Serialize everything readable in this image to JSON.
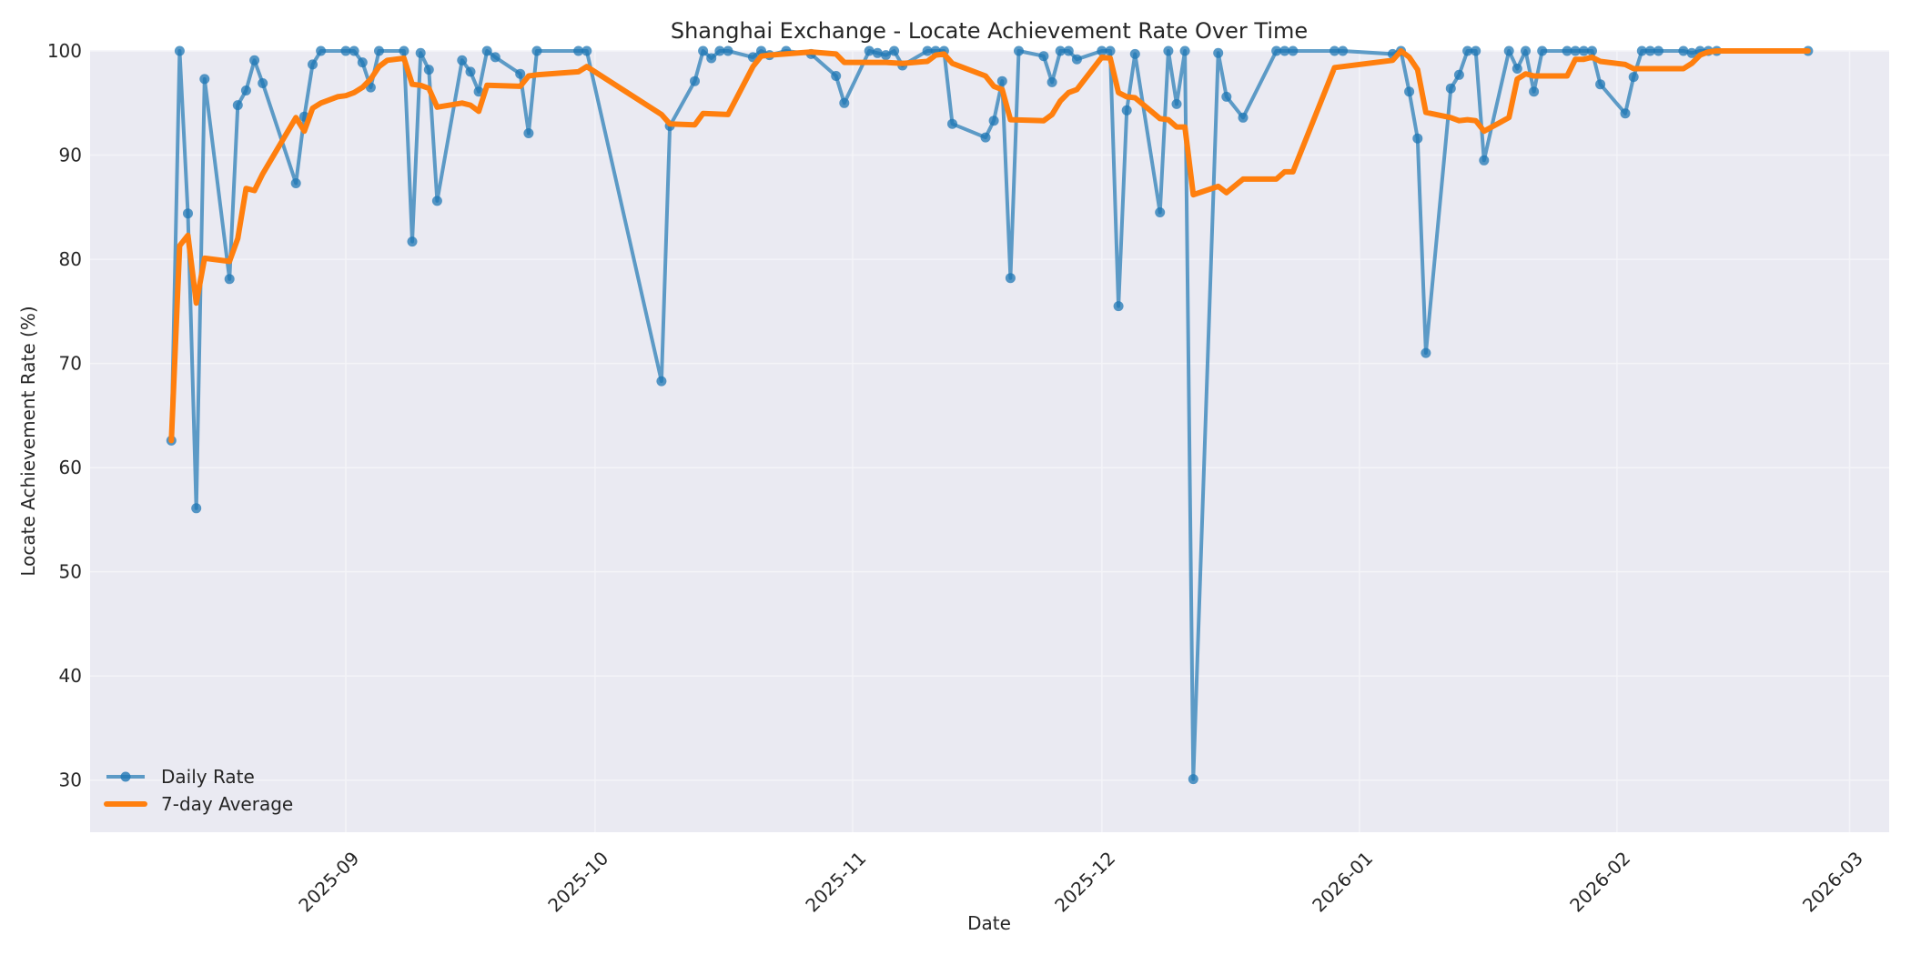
{
  "chart_data": {
    "type": "line",
    "title": "Shanghai Exchange - Locate Achievement Rate Over Time",
    "xlabel": "Date",
    "ylabel": "Locate Achievement Rate (%)",
    "ylim": [
      25,
      100
    ],
    "yticks": [
      30,
      40,
      50,
      60,
      70,
      80,
      90,
      100
    ],
    "xlim": [
      "2025-08-02",
      "2026-03-04"
    ],
    "xticks": [
      "2025-09-01",
      "2025-10-01",
      "2025-11-01",
      "2025-12-01",
      "2026-01-01",
      "2026-02-01",
      "2026-03-01"
    ],
    "xtick_labels": [
      "2025-09",
      "2025-10",
      "2025-11",
      "2025-12",
      "2026-01",
      "2026-02",
      "2026-03"
    ],
    "grid": true,
    "legend_position": "lower left",
    "colors": {
      "daily": "#1f77b4",
      "avg": "#ff7f0e",
      "background": "#eaeaf2",
      "grid": "#f5f5f8"
    },
    "series": [
      {
        "name": "Daily Rate",
        "style": "line+markers",
        "points": [
          [
            "2025-08-11",
            62.6
          ],
          [
            "2025-08-12",
            100.0
          ],
          [
            "2025-08-13",
            84.4
          ],
          [
            "2025-08-14",
            56.1
          ],
          [
            "2025-08-15",
            97.3
          ],
          [
            "2025-08-18",
            78.1
          ],
          [
            "2025-08-19",
            94.8
          ],
          [
            "2025-08-20",
            96.2
          ],
          [
            "2025-08-21",
            99.1
          ],
          [
            "2025-08-22",
            96.9
          ],
          [
            "2025-08-26",
            87.3
          ],
          [
            "2025-08-27",
            93.7
          ],
          [
            "2025-08-28",
            98.7
          ],
          [
            "2025-08-29",
            100.0
          ],
          [
            "2025-09-01",
            100.0
          ],
          [
            "2025-09-02",
            100.0
          ],
          [
            "2025-09-03",
            98.9
          ],
          [
            "2025-09-04",
            96.5
          ],
          [
            "2025-09-05",
            100.0
          ],
          [
            "2025-09-08",
            100.0
          ],
          [
            "2025-09-09",
            81.7
          ],
          [
            "2025-09-10",
            99.8
          ],
          [
            "2025-09-11",
            98.2
          ],
          [
            "2025-09-12",
            85.6
          ],
          [
            "2025-09-15",
            99.1
          ],
          [
            "2025-09-16",
            98.0
          ],
          [
            "2025-09-17",
            96.1
          ],
          [
            "2025-09-18",
            100.0
          ],
          [
            "2025-09-19",
            99.4
          ],
          [
            "2025-09-22",
            97.8
          ],
          [
            "2025-09-23",
            92.1
          ],
          [
            "2025-09-24",
            100.0
          ],
          [
            "2025-09-29",
            100.0
          ],
          [
            "2025-09-30",
            100.0
          ],
          [
            "2025-10-09",
            68.3
          ],
          [
            "2025-10-10",
            92.8
          ],
          [
            "2025-10-13",
            97.1
          ],
          [
            "2025-10-14",
            100.0
          ],
          [
            "2025-10-15",
            99.3
          ],
          [
            "2025-10-16",
            100.0
          ],
          [
            "2025-10-17",
            100.0
          ],
          [
            "2025-10-20",
            99.4
          ],
          [
            "2025-10-21",
            100.0
          ],
          [
            "2025-10-22",
            99.6
          ],
          [
            "2025-10-24",
            100.0
          ],
          [
            "2025-10-27",
            99.7
          ],
          [
            "2025-10-30",
            97.6
          ],
          [
            "2025-10-31",
            95.0
          ],
          [
            "2025-11-03",
            100.0
          ],
          [
            "2025-11-04",
            99.8
          ],
          [
            "2025-11-05",
            99.6
          ],
          [
            "2025-11-06",
            100.0
          ],
          [
            "2025-11-07",
            98.6
          ],
          [
            "2025-11-10",
            100.0
          ],
          [
            "2025-11-11",
            100.0
          ],
          [
            "2025-11-12",
            100.0
          ],
          [
            "2025-11-13",
            93.0
          ],
          [
            "2025-11-17",
            91.7
          ],
          [
            "2025-11-18",
            93.3
          ],
          [
            "2025-11-19",
            97.1
          ],
          [
            "2025-11-20",
            78.2
          ],
          [
            "2025-11-21",
            100.0
          ],
          [
            "2025-11-24",
            99.5
          ],
          [
            "2025-11-25",
            97.0
          ],
          [
            "2025-11-26",
            100.0
          ],
          [
            "2025-11-27",
            100.0
          ],
          [
            "2025-11-28",
            99.2
          ],
          [
            "2025-12-01",
            100.0
          ],
          [
            "2025-12-02",
            100.0
          ],
          [
            "2025-12-03",
            75.5
          ],
          [
            "2025-12-04",
            94.3
          ],
          [
            "2025-12-05",
            99.7
          ],
          [
            "2025-12-08",
            84.5
          ],
          [
            "2025-12-09",
            100.0
          ],
          [
            "2025-12-10",
            94.9
          ],
          [
            "2025-12-11",
            100.0
          ],
          [
            "2025-12-12",
            30.1
          ],
          [
            "2025-12-15",
            99.8
          ],
          [
            "2025-12-16",
            95.6
          ],
          [
            "2025-12-18",
            93.6
          ],
          [
            "2025-12-22",
            100.0
          ],
          [
            "2025-12-23",
            100.0
          ],
          [
            "2025-12-24",
            100.0
          ],
          [
            "2025-12-29",
            100.0
          ],
          [
            "2025-12-30",
            100.0
          ],
          [
            "2026-01-05",
            99.7
          ],
          [
            "2026-01-06",
            100.0
          ],
          [
            "2026-01-07",
            96.1
          ],
          [
            "2026-01-08",
            91.6
          ],
          [
            "2026-01-09",
            71.0
          ],
          [
            "2026-01-12",
            96.4
          ],
          [
            "2026-01-13",
            97.7
          ],
          [
            "2026-01-14",
            100.0
          ],
          [
            "2026-01-15",
            100.0
          ],
          [
            "2026-01-16",
            89.5
          ],
          [
            "2026-01-19",
            100.0
          ],
          [
            "2026-01-20",
            98.3
          ],
          [
            "2026-01-21",
            100.0
          ],
          [
            "2026-01-22",
            96.1
          ],
          [
            "2026-01-23",
            100.0
          ],
          [
            "2026-01-26",
            100.0
          ],
          [
            "2026-01-27",
            100.0
          ],
          [
            "2026-01-28",
            100.0
          ],
          [
            "2026-01-29",
            100.0
          ],
          [
            "2026-01-30",
            96.8
          ],
          [
            "2026-02-02",
            94.0
          ],
          [
            "2026-02-03",
            97.5
          ],
          [
            "2026-02-04",
            100.0
          ],
          [
            "2026-02-05",
            100.0
          ],
          [
            "2026-02-06",
            100.0
          ],
          [
            "2026-02-09",
            100.0
          ],
          [
            "2026-02-10",
            99.8
          ],
          [
            "2026-02-11",
            100.0
          ],
          [
            "2026-02-12",
            100.0
          ],
          [
            "2026-02-13",
            100.0
          ],
          [
            "2026-02-24",
            100.0
          ]
        ]
      },
      {
        "name": "7-day Average",
        "style": "line",
        "points": [
          [
            "2025-08-11",
            62.6
          ],
          [
            "2025-08-12",
            81.3
          ],
          [
            "2025-08-13",
            82.3
          ],
          [
            "2025-08-14",
            75.8
          ],
          [
            "2025-08-15",
            80.1
          ],
          [
            "2025-08-18",
            79.8
          ],
          [
            "2025-08-19",
            82.0
          ],
          [
            "2025-08-20",
            86.8
          ],
          [
            "2025-08-21",
            86.6
          ],
          [
            "2025-08-22",
            88.2
          ],
          [
            "2025-08-26",
            93.6
          ],
          [
            "2025-08-27",
            92.3
          ],
          [
            "2025-08-28",
            94.5
          ],
          [
            "2025-08-29",
            95.0
          ],
          [
            "2025-08-31",
            95.6
          ],
          [
            "2025-09-01",
            95.7
          ],
          [
            "2025-09-02",
            96.0
          ],
          [
            "2025-09-03",
            96.5
          ],
          [
            "2025-09-04",
            97.3
          ],
          [
            "2025-09-05",
            98.5
          ],
          [
            "2025-09-06",
            99.1
          ],
          [
            "2025-09-08",
            99.3
          ],
          [
            "2025-09-09",
            96.8
          ],
          [
            "2025-09-10",
            96.7
          ],
          [
            "2025-09-11",
            96.4
          ],
          [
            "2025-09-12",
            94.6
          ],
          [
            "2025-09-15",
            95.0
          ],
          [
            "2025-09-16",
            94.8
          ],
          [
            "2025-09-17",
            94.2
          ],
          [
            "2025-09-18",
            96.7
          ],
          [
            "2025-09-22",
            96.6
          ],
          [
            "2025-09-23",
            97.6
          ],
          [
            "2025-09-24",
            97.7
          ],
          [
            "2025-09-29",
            98.0
          ],
          [
            "2025-09-30",
            98.5
          ],
          [
            "2025-10-09",
            93.9
          ],
          [
            "2025-10-10",
            93.0
          ],
          [
            "2025-10-13",
            92.9
          ],
          [
            "2025-10-14",
            94.0
          ],
          [
            "2025-10-17",
            93.9
          ],
          [
            "2025-10-20",
            98.5
          ],
          [
            "2025-10-21",
            99.5
          ],
          [
            "2025-10-22",
            99.6
          ],
          [
            "2025-10-27",
            99.9
          ],
          [
            "2025-10-30",
            99.7
          ],
          [
            "2025-10-31",
            98.9
          ],
          [
            "2025-11-03",
            98.9
          ],
          [
            "2025-11-05",
            98.9
          ],
          [
            "2025-11-07",
            98.8
          ],
          [
            "2025-11-10",
            99.0
          ],
          [
            "2025-11-11",
            99.6
          ],
          [
            "2025-11-12",
            99.7
          ],
          [
            "2025-11-13",
            98.8
          ],
          [
            "2025-11-17",
            97.6
          ],
          [
            "2025-11-18",
            96.6
          ],
          [
            "2025-11-19",
            96.3
          ],
          [
            "2025-11-20",
            93.4
          ],
          [
            "2025-11-24",
            93.3
          ],
          [
            "2025-11-25",
            93.9
          ],
          [
            "2025-11-26",
            95.2
          ],
          [
            "2025-11-27",
            96.0
          ],
          [
            "2025-11-28",
            96.3
          ],
          [
            "2025-12-01",
            99.4
          ],
          [
            "2025-12-02",
            99.3
          ],
          [
            "2025-12-03",
            96.0
          ],
          [
            "2025-12-04",
            95.6
          ],
          [
            "2025-12-05",
            95.5
          ],
          [
            "2025-12-08",
            93.5
          ],
          [
            "2025-12-09",
            93.4
          ],
          [
            "2025-12-10",
            92.7
          ],
          [
            "2025-12-11",
            92.7
          ],
          [
            "2025-12-12",
            86.2
          ],
          [
            "2025-12-15",
            87.0
          ],
          [
            "2025-12-16",
            86.4
          ],
          [
            "2025-12-18",
            87.7
          ],
          [
            "2025-12-22",
            87.7
          ],
          [
            "2025-12-23",
            88.4
          ],
          [
            "2025-12-24",
            88.4
          ],
          [
            "2025-12-29",
            98.4
          ],
          [
            "2025-12-30",
            98.5
          ],
          [
            "2026-01-05",
            99.1
          ],
          [
            "2026-01-06",
            100.0
          ],
          [
            "2026-01-07",
            99.4
          ],
          [
            "2026-01-08",
            98.2
          ],
          [
            "2026-01-09",
            94.1
          ],
          [
            "2026-01-12",
            93.6
          ],
          [
            "2026-01-13",
            93.3
          ],
          [
            "2026-01-14",
            93.4
          ],
          [
            "2026-01-15",
            93.3
          ],
          [
            "2026-01-16",
            92.3
          ],
          [
            "2026-01-19",
            93.6
          ],
          [
            "2026-01-20",
            97.3
          ],
          [
            "2026-01-21",
            97.8
          ],
          [
            "2026-01-22",
            97.6
          ],
          [
            "2026-01-26",
            97.6
          ],
          [
            "2026-01-27",
            99.2
          ],
          [
            "2026-01-28",
            99.2
          ],
          [
            "2026-01-29",
            99.4
          ],
          [
            "2026-01-30",
            99.0
          ],
          [
            "2026-02-02",
            98.7
          ],
          [
            "2026-02-03",
            98.3
          ],
          [
            "2026-02-09",
            98.3
          ],
          [
            "2026-02-10",
            98.8
          ],
          [
            "2026-02-11",
            99.6
          ],
          [
            "2026-02-12",
            99.9
          ],
          [
            "2026-02-13",
            100.0
          ],
          [
            "2026-02-24",
            100.0
          ]
        ]
      }
    ]
  }
}
